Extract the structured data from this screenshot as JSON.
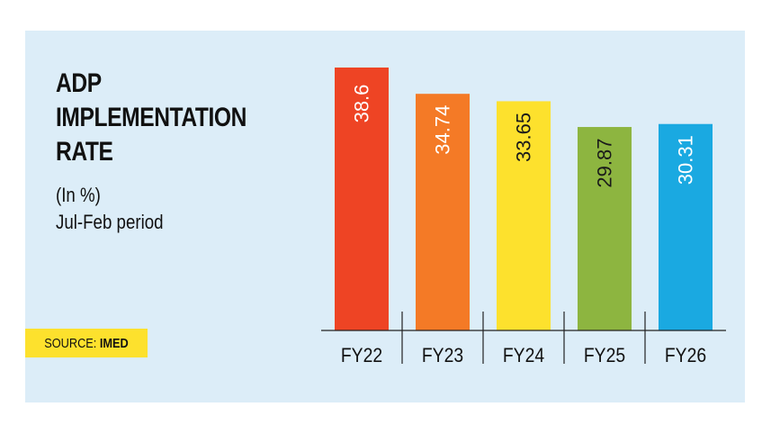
{
  "title_lines": [
    "ADP",
    "IMPLEMENTATION",
    "RATE"
  ],
  "subtitle_lines": [
    "(In %)",
    "Jul-Feb period"
  ],
  "source": {
    "prefix": "SOURCE: ",
    "name": "IMED"
  },
  "colors": {
    "background": "#dcedf8",
    "source_badge": "#fde12d",
    "bars": [
      "#ee4424",
      "#f47a26",
      "#fde12d",
      "#8db540",
      "#1aa9e1"
    ]
  },
  "chart_data": {
    "type": "bar",
    "categories": [
      "FY22",
      "FY23",
      "FY24",
      "FY25",
      "FY26"
    ],
    "values": [
      38.6,
      34.74,
      33.65,
      29.87,
      30.31
    ],
    "value_labels": [
      "38.6",
      "34.74",
      "33.65",
      "29.87",
      "30.31"
    ],
    "title": "ADP IMPLEMENTATION RATE",
    "subtitle": "(In %) Jul-Feb period",
    "xlabel": "",
    "ylabel": "",
    "ylim": [
      0,
      38.6
    ],
    "grid": false,
    "legend": "none",
    "bar_label_orientation": "vertical"
  }
}
